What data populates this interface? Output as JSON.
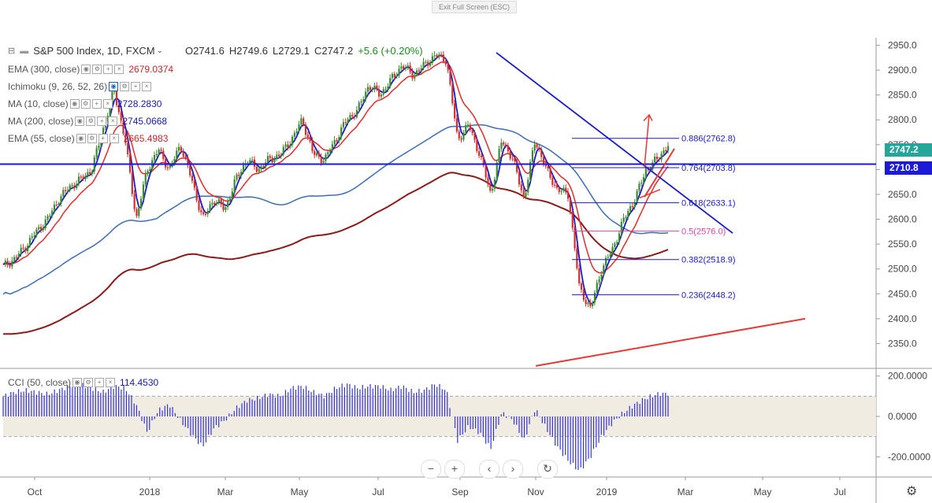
{
  "ui": {
    "exit_fullscreen": "Exit Full Screen (ESC)",
    "main_legend": {
      "symbol": "S&P 500 Index, 1D, FXCM",
      "open": "O2741.6",
      "high": "H2749.6",
      "low": "L2729.1",
      "close": "C2747.2",
      "change": "+5.6 (+0.20%)"
    },
    "indicators": [
      {
        "name": "EMA (300, close)",
        "value": "2679.0374",
        "color": "#c62828"
      },
      {
        "name": "Ichimoku (9, 26, 52, 26)",
        "value": "",
        "color": "#1565c0"
      },
      {
        "name": "MA (10, close)",
        "value": "2728.2830",
        "color": "#1a1aa8"
      },
      {
        "name": "MA (200, close)",
        "value": "2745.0668",
        "color": "#1a1aa8"
      },
      {
        "name": "EMA (55, close)",
        "value": "2665.4983",
        "color": "#c62828"
      }
    ],
    "cci_legend": {
      "name": "CCI (50, close)",
      "value": "114.4530"
    },
    "price_labels": [
      {
        "text": "2747.2",
        "bg": "#26a69a"
      },
      {
        "text": "2710.8",
        "bg": "#1a1ad8"
      }
    ],
    "icons": [
      "zoom-out-icon",
      "zoom-in-icon",
      "scroll-left-icon",
      "scroll-right-icon",
      "reset-icon",
      "settings-icon"
    ]
  },
  "chart_data": {
    "type": "candlestick",
    "title": "S&P 500 Index, 1D, FXCM",
    "ylim": [
      2300,
      2965
    ],
    "x_ticks": [
      "Oct",
      "2018",
      "Mar",
      "May",
      "Jul",
      "Sep",
      "Nov",
      "2019",
      "Mar",
      "May",
      "Jul"
    ],
    "y_ticks": [
      "2950.0",
      "2900.0",
      "2850.0",
      "2800.0",
      "2750.0",
      "2700.0",
      "2650.0",
      "2600.0",
      "2550.0",
      "2500.0",
      "2450.0",
      "2400.0",
      "2350.0"
    ],
    "price_path": [
      2505,
      2520,
      2545,
      2575,
      2600,
      2640,
      2665,
      2680,
      2700,
      2780,
      2860,
      2760,
      2600,
      2700,
      2740,
      2700,
      2750,
      2680,
      2600,
      2640,
      2620,
      2680,
      2720,
      2700,
      2720,
      2730,
      2760,
      2800,
      2730,
      2720,
      2760,
      2800,
      2820,
      2870,
      2850,
      2880,
      2910,
      2890,
      2910,
      2930,
      2920,
      2760,
      2790,
      2730,
      2650,
      2760,
      2720,
      2640,
      2760,
      2700,
      2660,
      2650,
      2460,
      2420,
      2500,
      2540,
      2600,
      2640,
      2700,
      2720,
      2750
    ],
    "fibonacci": [
      {
        "label": "0.886(2762.8)",
        "value": 2762.8
      },
      {
        "label": "0.764(2703.8)",
        "value": 2703.8
      },
      {
        "label": "0.618(2633.1)",
        "value": 2633.1
      },
      {
        "label": "0.5(2576.0)",
        "value": 2576.0
      },
      {
        "label": "0.382(2518.9)",
        "value": 2518.9
      },
      {
        "label": "0.236(2448.2)",
        "value": 2448.2
      }
    ],
    "horizontal_line": 2710.8,
    "last_close": 2747.2,
    "cci": {
      "name": "CCI (50, close)",
      "value": 114.453,
      "y_ticks": [
        "200.0000",
        "0.0000",
        "-200.0000"
      ],
      "band": [
        100,
        -100
      ],
      "values": [
        100,
        120,
        130,
        120,
        110,
        130,
        150,
        160,
        140,
        120,
        150,
        140,
        60,
        -80,
        30,
        60,
        -20,
        -90,
        -150,
        -60,
        -20,
        40,
        80,
        90,
        110,
        100,
        140,
        150,
        120,
        100,
        140,
        160,
        140,
        150,
        150,
        130,
        150,
        120,
        130,
        160,
        130,
        -120,
        -50,
        -80,
        -160,
        20,
        -20,
        -120,
        40,
        -60,
        -150,
        -220,
        -270,
        -200,
        -100,
        -30,
        20,
        60,
        90,
        110,
        114
      ]
    }
  }
}
